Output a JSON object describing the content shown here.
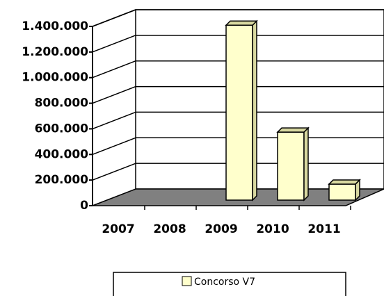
{
  "chart_data": {
    "type": "bar3d",
    "categories": [
      "2007",
      "2008",
      "2009",
      "2010",
      "2011"
    ],
    "series": [
      {
        "name": "Concorso V7",
        "color": "#ffffcc",
        "values": [
          0,
          0,
          1366000,
          531000,
          125000
        ]
      }
    ],
    "ylim": [
      0,
      1400000
    ],
    "yticks": [
      0,
      {
        "value": 200000,
        "label": "200.000"
      },
      {
        "value": 400000,
        "label": "400.000"
      },
      {
        "value": 600000,
        "label": "600.000"
      },
      {
        "value": 800000,
        "label": "800.000"
      },
      {
        "value": 1000000,
        "label": "1.000.000"
      },
      {
        "value": 1200000,
        "label": "1.200.000"
      },
      {
        "value": 1400000,
        "label": "1.400.000"
      }
    ],
    "grid": true,
    "legend": "bottom",
    "floor_color": "#808080"
  }
}
